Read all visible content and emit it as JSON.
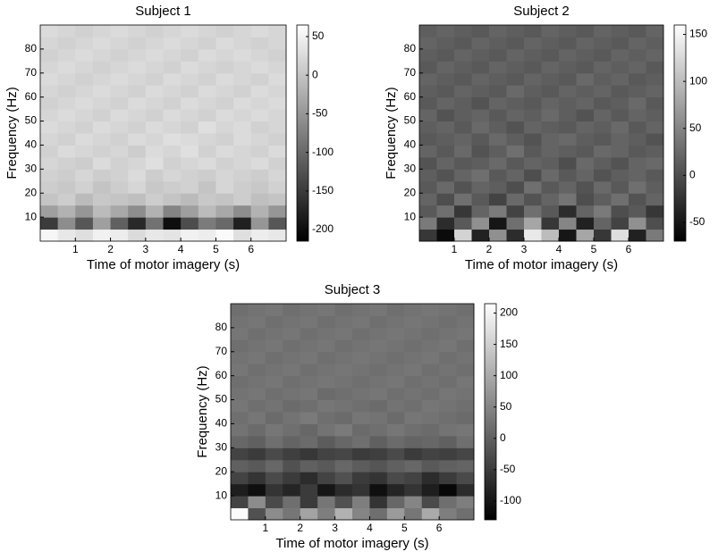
{
  "chart_data": [
    {
      "type": "heatmap",
      "title": "Subject 1",
      "xlabel": "Time of motor imagery (s)",
      "ylabel": "Frequency (Hz)",
      "x": [
        0.25,
        0.75,
        1.25,
        1.75,
        2.25,
        2.75,
        3.25,
        3.75,
        4.25,
        4.75,
        5.25,
        5.75,
        6.25,
        6.75
      ],
      "y": [
        2.5,
        7.5,
        12.5,
        17.5,
        22.5,
        27.5,
        32.5,
        37.5,
        42.5,
        47.5,
        52.5,
        57.5,
        62.5,
        67.5,
        72.5,
        77.5,
        82.5,
        87.5
      ],
      "z": [
        [
          55,
          40,
          30,
          50,
          45,
          25,
          40,
          35,
          50,
          45,
          60,
          30,
          45,
          40
        ],
        [
          -150,
          -60,
          -120,
          -40,
          -110,
          -170,
          -90,
          -200,
          -130,
          -80,
          -100,
          -180,
          -50,
          -120
        ],
        [
          -40,
          -20,
          -50,
          -10,
          -30,
          -60,
          -20,
          -70,
          -40,
          -10,
          -30,
          -60,
          -20,
          -50
        ],
        [
          0,
          10,
          -10,
          5,
          0,
          -5,
          10,
          0,
          -10,
          5,
          0,
          10,
          -5,
          0
        ],
        [
          10,
          5,
          15,
          0,
          10,
          20,
          5,
          10,
          15,
          0,
          20,
          10,
          5,
          15
        ],
        [
          15,
          10,
          20,
          10,
          15,
          25,
          10,
          20,
          15,
          10,
          20,
          15,
          10,
          20
        ],
        [
          20,
          15,
          10,
          25,
          15,
          20,
          30,
          15,
          20,
          25,
          15,
          20,
          25,
          15
        ],
        [
          15,
          25,
          20,
          15,
          20,
          10,
          25,
          20,
          30,
          15,
          25,
          20,
          15,
          25
        ],
        [
          20,
          15,
          25,
          20,
          15,
          25,
          20,
          30,
          25,
          20,
          15,
          25,
          20,
          15
        ],
        [
          25,
          20,
          15,
          25,
          20,
          15,
          25,
          20,
          15,
          30,
          20,
          25,
          15,
          20
        ],
        [
          20,
          25,
          20,
          15,
          25,
          20,
          15,
          25,
          20,
          15,
          25,
          20,
          25,
          20
        ],
        [
          15,
          20,
          25,
          20,
          15,
          25,
          20,
          15,
          25,
          20,
          15,
          25,
          20,
          25
        ],
        [
          20,
          15,
          20,
          25,
          20,
          15,
          25,
          20,
          15,
          25,
          20,
          15,
          25,
          20
        ],
        [
          25,
          20,
          15,
          20,
          25,
          20,
          15,
          25,
          20,
          15,
          25,
          20,
          15,
          25
        ],
        [
          20,
          25,
          20,
          15,
          20,
          25,
          20,
          15,
          25,
          20,
          15,
          20,
          25,
          20
        ],
        [
          15,
          20,
          25,
          20,
          15,
          20,
          25,
          20,
          15,
          25,
          20,
          25,
          20,
          15
        ],
        [
          20,
          15,
          20,
          25,
          20,
          15,
          20,
          25,
          20,
          15,
          25,
          20,
          15,
          20
        ],
        [
          25,
          20,
          15,
          20,
          25,
          20,
          15,
          20,
          25,
          20,
          15,
          20,
          25,
          20
        ]
      ],
      "xlim": [
        0,
        7
      ],
      "ylim": [
        0,
        90
      ],
      "xticks": [
        1,
        2,
        3,
        4,
        5,
        6
      ],
      "yticks": [
        10,
        20,
        30,
        40,
        50,
        60,
        70,
        80
      ],
      "clim": [
        -215,
        65
      ],
      "cticks": [
        -200,
        -150,
        -100,
        -50,
        0,
        50
      ],
      "colormap": "gray"
    },
    {
      "type": "heatmap",
      "title": "Subject 2",
      "xlabel": "Time of motor imagery (s)",
      "ylabel": "Frequency (Hz)",
      "x": [
        0.25,
        0.75,
        1.25,
        1.75,
        2.25,
        2.75,
        3.25,
        3.75,
        4.25,
        4.75,
        5.25,
        5.75,
        6.25,
        6.75
      ],
      "y": [
        2.5,
        7.5,
        12.5,
        17.5,
        22.5,
        27.5,
        32.5,
        37.5,
        42.5,
        47.5,
        52.5,
        57.5,
        62.5,
        67.5,
        72.5,
        77.5,
        82.5,
        87.5
      ],
      "z": [
        [
          -20,
          -60,
          120,
          -40,
          60,
          -30,
          140,
          100,
          -50,
          80,
          -20,
          130,
          -40,
          40
        ],
        [
          40,
          -30,
          10,
          60,
          -50,
          30,
          80,
          -20,
          50,
          -40,
          20,
          -10,
          60,
          0
        ],
        [
          10,
          30,
          -20,
          20,
          40,
          -10,
          30,
          10,
          -30,
          20,
          40,
          0,
          10,
          -20
        ],
        [
          20,
          0,
          30,
          10,
          -10,
          25,
          5,
          20,
          35,
          0,
          15,
          30,
          5,
          20
        ],
        [
          10,
          25,
          5,
          20,
          15,
          0,
          30,
          10,
          20,
          5,
          25,
          10,
          30,
          15
        ],
        [
          15,
          5,
          20,
          30,
          10,
          20,
          0,
          25,
          10,
          20,
          5,
          15,
          20,
          10
        ],
        [
          5,
          20,
          10,
          15,
          25,
          10,
          20,
          15,
          0,
          25,
          15,
          5,
          20,
          25
        ],
        [
          20,
          10,
          25,
          5,
          15,
          30,
          10,
          20,
          15,
          10,
          25,
          20,
          10,
          15
        ],
        [
          10,
          15,
          20,
          10,
          25,
          15,
          5,
          20,
          25,
          15,
          10,
          20,
          15,
          5
        ],
        [
          15,
          20,
          10,
          25,
          15,
          5,
          20,
          15,
          10,
          20,
          15,
          25,
          10,
          20
        ],
        [
          20,
          5,
          15,
          20,
          10,
          20,
          15,
          25,
          15,
          5,
          20,
          10,
          20,
          15
        ],
        [
          10,
          20,
          15,
          5,
          20,
          15,
          10,
          20,
          15,
          20,
          10,
          15,
          25,
          10
        ],
        [
          15,
          10,
          20,
          15,
          10,
          25,
          15,
          10,
          20,
          15,
          20,
          10,
          15,
          20
        ],
        [
          20,
          15,
          10,
          20,
          15,
          10,
          20,
          15,
          10,
          25,
          15,
          20,
          10,
          15
        ],
        [
          10,
          20,
          15,
          10,
          20,
          15,
          10,
          20,
          15,
          10,
          20,
          15,
          20,
          10
        ],
        [
          15,
          10,
          20,
          15,
          10,
          20,
          15,
          10,
          20,
          15,
          10,
          20,
          15,
          20
        ],
        [
          20,
          15,
          10,
          20,
          15,
          10,
          20,
          15,
          10,
          20,
          15,
          10,
          20,
          15
        ],
        [
          15,
          20,
          15,
          10,
          20,
          15,
          10,
          20,
          15,
          10,
          20,
          15,
          10,
          20
        ]
      ],
      "xlim": [
        0,
        7
      ],
      "ylim": [
        0,
        90
      ],
      "xticks": [
        1,
        2,
        3,
        4,
        5,
        6
      ],
      "yticks": [
        10,
        20,
        30,
        40,
        50,
        60,
        70,
        80
      ],
      "clim": [
        -70,
        160
      ],
      "cticks": [
        -50,
        0,
        50,
        100,
        150
      ],
      "colormap": "gray"
    },
    {
      "type": "heatmap",
      "title": "Subject 3",
      "xlabel": "Time of motor imagery (s)",
      "ylabel": "Frequency (Hz)",
      "x": [
        0.25,
        0.75,
        1.25,
        1.75,
        2.25,
        2.75,
        3.25,
        3.75,
        4.25,
        4.75,
        5.25,
        5.75,
        6.25,
        6.75
      ],
      "y": [
        2.5,
        7.5,
        12.5,
        17.5,
        22.5,
        27.5,
        32.5,
        37.5,
        42.5,
        47.5,
        52.5,
        57.5,
        62.5,
        67.5,
        72.5,
        77.5,
        82.5,
        87.5
      ],
      "z": [
        [
          210,
          -20,
          60,
          30,
          90,
          40,
          110,
          50,
          20,
          80,
          30,
          100,
          40,
          20
        ],
        [
          -40,
          60,
          -30,
          20,
          -50,
          30,
          -20,
          40,
          -60,
          10,
          50,
          -30,
          20,
          40
        ],
        [
          -90,
          -110,
          -60,
          -80,
          -50,
          -100,
          -70,
          -60,
          -110,
          -80,
          -60,
          -90,
          -120,
          -70
        ],
        [
          -40,
          -60,
          -30,
          -50,
          -70,
          -40,
          -20,
          -50,
          -60,
          -30,
          -40,
          -70,
          -50,
          -30
        ],
        [
          0,
          -10,
          10,
          -20,
          0,
          -10,
          10,
          -5,
          -15,
          0,
          10,
          -10,
          0,
          5
        ],
        [
          -40,
          -50,
          -30,
          -45,
          -55,
          -40,
          -35,
          -50,
          -45,
          -30,
          -50,
          -40,
          -45,
          -35
        ],
        [
          10,
          0,
          20,
          5,
          15,
          -5,
          10,
          20,
          0,
          15,
          5,
          10,
          0,
          20
        ],
        [
          25,
          15,
          30,
          20,
          10,
          25,
          35,
          15,
          20,
          30,
          20,
          15,
          25,
          30
        ],
        [
          20,
          30,
          15,
          25,
          35,
          20,
          15,
          30,
          25,
          15,
          30,
          25,
          20,
          15
        ],
        [
          30,
          20,
          25,
          15,
          20,
          30,
          25,
          20,
          15,
          25,
          20,
          30,
          25,
          20
        ],
        [
          25,
          30,
          20,
          25,
          30,
          15,
          20,
          25,
          30,
          20,
          25,
          20,
          30,
          25
        ],
        [
          20,
          25,
          30,
          20,
          25,
          30,
          25,
          20,
          25,
          30,
          20,
          25,
          20,
          30
        ],
        [
          30,
          20,
          25,
          30,
          20,
          25,
          30,
          25,
          20,
          25,
          30,
          20,
          25,
          20
        ],
        [
          25,
          30,
          20,
          25,
          30,
          20,
          25,
          30,
          25,
          20,
          25,
          30,
          20,
          25
        ],
        [
          20,
          25,
          30,
          20,
          25,
          30,
          20,
          25,
          30,
          25,
          20,
          25,
          30,
          20
        ],
        [
          30,
          20,
          25,
          30,
          20,
          25,
          30,
          20,
          25,
          30,
          25,
          20,
          25,
          30
        ],
        [
          25,
          30,
          20,
          25,
          30,
          20,
          25,
          30,
          20,
          25,
          30,
          25,
          20,
          25
        ],
        [
          20,
          25,
          30,
          20,
          25,
          30,
          20,
          25,
          30,
          20,
          25,
          30,
          25,
          20
        ]
      ],
      "xlim": [
        0,
        7
      ],
      "ylim": [
        0,
        90
      ],
      "xticks": [
        1,
        2,
        3,
        4,
        5,
        6
      ],
      "yticks": [
        10,
        20,
        30,
        40,
        50,
        60,
        70,
        80
      ],
      "clim": [
        -130,
        215
      ],
      "cticks": [
        -100,
        -50,
        0,
        50,
        100,
        150,
        200
      ],
      "colormap": "gray"
    }
  ]
}
